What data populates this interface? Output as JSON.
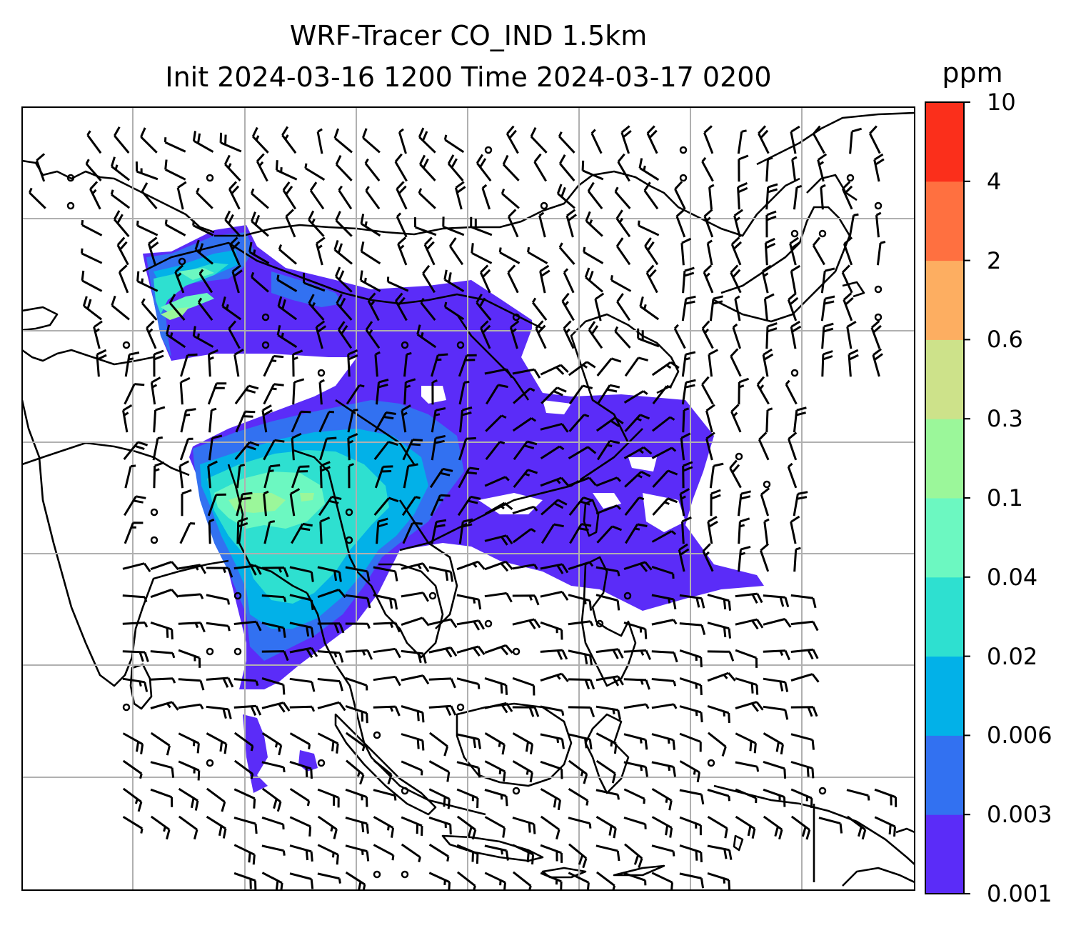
{
  "title": {
    "line1": "WRF-Tracer CO_IND 1.5km",
    "line2": "Init 2024-03-16 1200 Time 2024-03-17 0200"
  },
  "colorbar": {
    "unit": "ppm",
    "levels": [
      "0.001",
      "0.003",
      "0.006",
      "0.02",
      "0.04",
      "0.1",
      "0.3",
      "0.6",
      "2",
      "4",
      "10"
    ],
    "colors": [
      "#5b2cf8",
      "#3271f1",
      "#02b1e8",
      "#2ee0d0",
      "#6cf8c1",
      "#9bf79a",
      "#cde28a",
      "#fdae61",
      "#ff7040",
      "#fb2f1b"
    ]
  },
  "map": {
    "graticule": "on",
    "coastline_color": "#000000",
    "wind_barb_color": "#000000",
    "grid_color": "#b0b0b0"
  }
}
